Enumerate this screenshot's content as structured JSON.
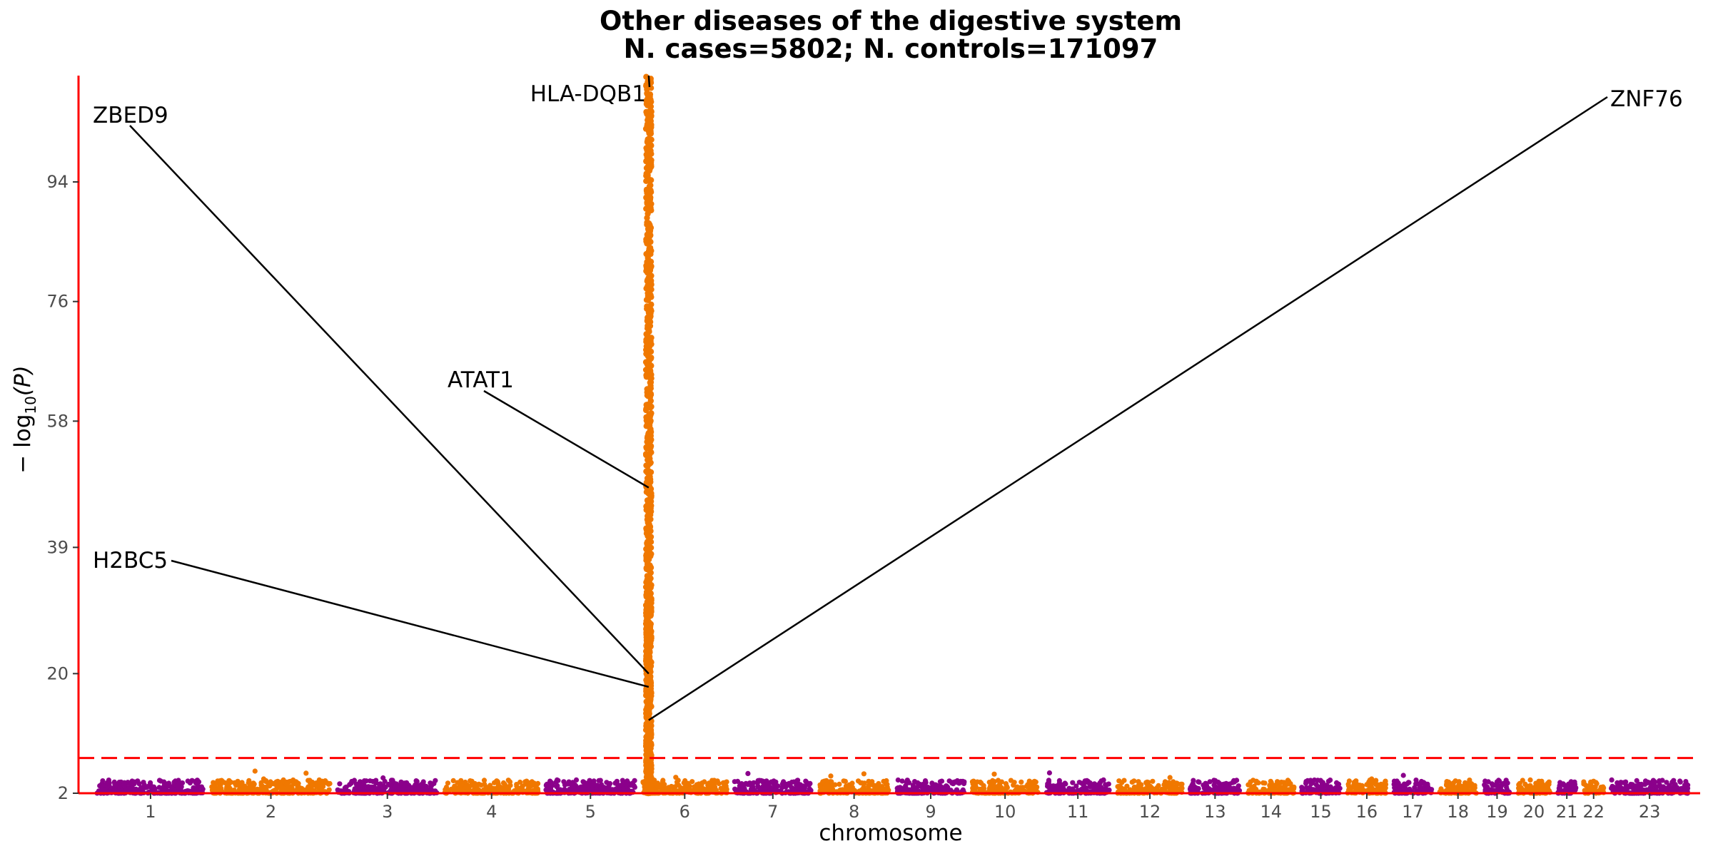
{
  "chart_data": {
    "type": "scatter",
    "subtype": "manhattan",
    "title": "Other diseases of the digestive system",
    "subtitle": "N. cases=5802; N. controls=171097",
    "xlabel": "chromosome",
    "ylabel_main": "− log",
    "ylabel_sub": "10",
    "ylabel_var": "(P)",
    "ylim": [
      2,
      110
    ],
    "yticks": [
      2,
      20,
      39,
      58,
      76,
      94
    ],
    "ytick_labels": [
      "2",
      "20",
      "39",
      "58",
      "76",
      "94"
    ],
    "significance_threshold": 7.3,
    "colors": {
      "odd_chromosomes": "#8B008B",
      "even_chromosomes": "#F07800",
      "threshold_line": "#FF0000",
      "axis_line": "#FF0000",
      "label_line": "#000000"
    },
    "chromosomes": [
      {
        "label": "1",
        "start": 0.0,
        "end": 7.0
      },
      {
        "label": "2",
        "start": 7.5,
        "end": 15.2
      },
      {
        "label": "3",
        "start": 15.7,
        "end": 22.2
      },
      {
        "label": "4",
        "start": 22.7,
        "end": 28.8
      },
      {
        "label": "5",
        "start": 29.3,
        "end": 35.1
      },
      {
        "label": "6",
        "start": 35.6,
        "end": 41.1
      },
      {
        "label": "7",
        "start": 41.6,
        "end": 46.6
      },
      {
        "label": "8",
        "start": 47.1,
        "end": 51.7
      },
      {
        "label": "9",
        "start": 52.2,
        "end": 56.6
      },
      {
        "label": "10",
        "start": 57.1,
        "end": 61.4
      },
      {
        "label": "11",
        "start": 61.9,
        "end": 66.1
      },
      {
        "label": "12",
        "start": 66.6,
        "end": 70.8
      },
      {
        "label": "13",
        "start": 71.3,
        "end": 74.6
      },
      {
        "label": "14",
        "start": 75.1,
        "end": 78.1
      },
      {
        "label": "15",
        "start": 78.6,
        "end": 81.1
      },
      {
        "label": "16",
        "start": 81.6,
        "end": 84.1
      },
      {
        "label": "17",
        "start": 84.6,
        "end": 87.1
      },
      {
        "label": "18",
        "start": 87.6,
        "end": 90.0
      },
      {
        "label": "19",
        "start": 90.5,
        "end": 92.2
      },
      {
        "label": "20",
        "start": 92.7,
        "end": 94.8
      },
      {
        "label": "21",
        "start": 95.3,
        "end": 96.5
      },
      {
        "label": "22",
        "start": 97.0,
        "end": 98.3
      },
      {
        "label": "23",
        "start": 98.8,
        "end": 103.8
      }
    ],
    "peak": {
      "chromosome": "6",
      "position": 36.0,
      "max_log10p": 110
    },
    "gene_labels": [
      {
        "gene": "HLA-DQB1",
        "log10p": 110
      },
      {
        "gene": "ZBED9",
        "log10p": 20
      },
      {
        "gene": "ATAT1",
        "log10p": 48
      },
      {
        "gene": "H2BC5",
        "log10p": 18
      },
      {
        "gene": "ZNF76",
        "log10p": 13
      }
    ]
  }
}
